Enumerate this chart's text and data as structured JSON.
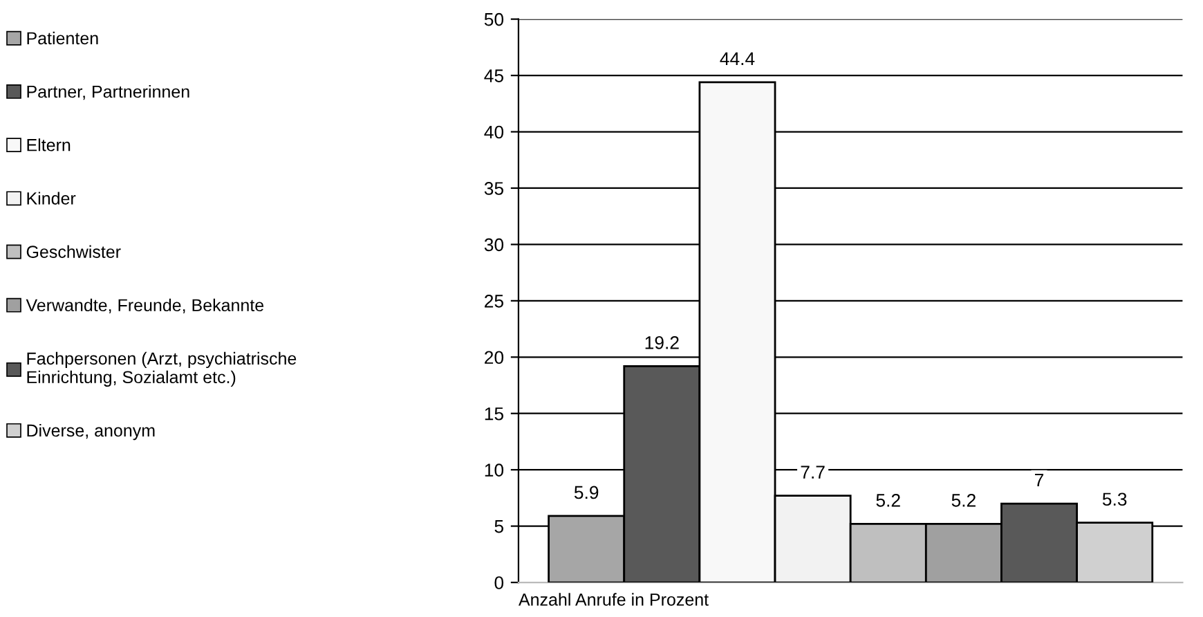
{
  "chart_data": {
    "type": "bar",
    "xlabel": "Anzahl Anrufe in Prozent",
    "categories": [
      null
    ],
    "series": [
      {
        "name": "Patienten",
        "color": "#a6a6a6",
        "values": [
          5.9
        ]
      },
      {
        "name": "Partner, Partnerinnen",
        "color": "#595959",
        "values": [
          19.2
        ]
      },
      {
        "name": "Eltern",
        "color": "#f8f8f8",
        "values": [
          44.4
        ]
      },
      {
        "name": "Kinder",
        "color": "#f2f2f2",
        "values": [
          7.7
        ]
      },
      {
        "name": "Geschwister",
        "color": "#bfbfbf",
        "values": [
          5.2
        ]
      },
      {
        "name": "Verwandte, Freunde, Bekannte",
        "color": "#a0a0a0",
        "values": [
          5.2
        ]
      },
      {
        "name": "Fachpersonen (Arzt, psychiatrische\nEinrichtung, Sozialamt etc.)",
        "color": "#595959",
        "values": [
          7
        ]
      },
      {
        "name": "Diverse, anonym",
        "color": "#d0d0d0",
        "values": [
          5.3
        ]
      }
    ],
    "ylim": [
      0,
      50
    ],
    "yticks": [
      0,
      5,
      10,
      15,
      20,
      25,
      30,
      35,
      40,
      45,
      50
    ],
    "grid": "y",
    "legend": "left",
    "data_labels": true
  }
}
